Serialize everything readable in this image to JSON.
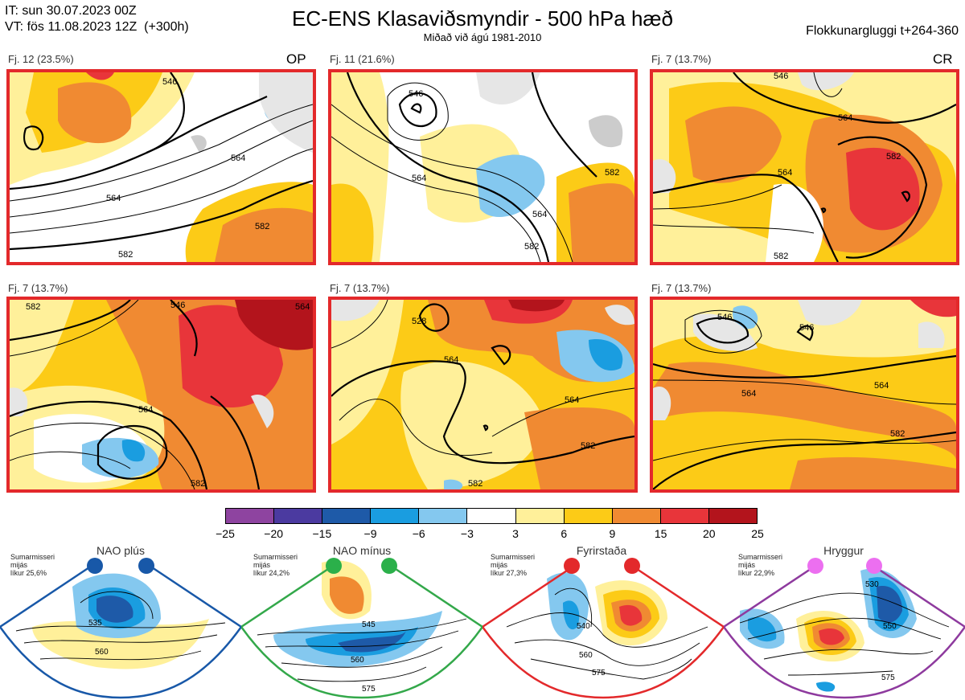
{
  "header": {
    "init_time": "IT: sun 30.07.2023 00Z",
    "valid_time": "VT: fös 11.08.2023 12Z  (+300h)",
    "title": "EC-ENS Klasaviðsmyndir - 500 hPa hæð",
    "subtitle": "Miðað við ágú 1981-2010",
    "cluster_window": "Flokkunargluggi t+264-360"
  },
  "panels": [
    {
      "label": "Fj. 12 (23.5%)",
      "tag": "OP",
      "contours": [
        "546",
        "564",
        "582",
        "564",
        "582"
      ]
    },
    {
      "label": "Fj. 11 (21.6%)",
      "tag": "",
      "contours": [
        "546",
        "564",
        "582",
        "564",
        "582"
      ]
    },
    {
      "label": "Fj. 7 (13.7%)",
      "tag": "CR",
      "contours": [
        "546",
        "564",
        "582",
        "564",
        "582"
      ]
    },
    {
      "label": "Fj. 7 (13.7%)",
      "tag": "",
      "contours": [
        "546",
        "564",
        "582",
        "564",
        "582"
      ]
    },
    {
      "label": "Fj. 7 (13.7%)",
      "tag": "",
      "contours": [
        "528",
        "564",
        "564",
        "582",
        "582"
      ]
    },
    {
      "label": "Fj. 7 (13.7%)",
      "tag": "",
      "contours": [
        "546",
        "546",
        "564",
        "582",
        "564"
      ]
    }
  ],
  "colorbar": {
    "colors": [
      "#8e44a0",
      "#4b3aa0",
      "#1e5aa8",
      "#1a9de0",
      "#84c8ef",
      "#ffffff",
      "#fff09a",
      "#fccb17",
      "#f08a32",
      "#e8353a",
      "#b3141c"
    ],
    "ticks": [
      "−25",
      "−20",
      "−15",
      "−9",
      "−6",
      "−3",
      "3",
      "6",
      "9",
      "15",
      "20",
      "25"
    ]
  },
  "regimes": [
    {
      "name": "NAO plús",
      "season": "Sumarmisseri",
      "metric": "mijás",
      "likelihood": "líkur 25,6%",
      "color": "#1858a8",
      "dot": "#1858a8",
      "contours": [
        "535",
        "560"
      ]
    },
    {
      "name": "NAO mínus",
      "season": "Sumarmisseri",
      "metric": "mijás",
      "likelihood": "líkur 24,2%",
      "color": "#33a84a",
      "dot": "#2bb04a",
      "contours": [
        "545",
        "560",
        "575"
      ]
    },
    {
      "name": "Fyrirstaða",
      "season": "Sumarmisseri",
      "metric": "mijás",
      "likelihood": "líkur 27,3%",
      "color": "#e3292b",
      "dot": "#e3292b",
      "contours": [
        "540",
        "560",
        "575"
      ]
    },
    {
      "name": "Hryggur",
      "season": "Sumarmisseri",
      "metric": "mijás",
      "likelihood": "líkur 22,9%",
      "color": "#8e3a9e",
      "dot": "#ec6ff0",
      "contours": [
        "530",
        "550",
        "575"
      ]
    }
  ]
}
